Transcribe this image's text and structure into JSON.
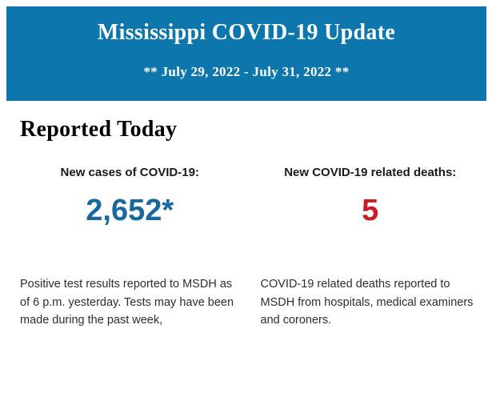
{
  "colors": {
    "banner_bg": "#0d76ad",
    "banner_text": "#ffffff",
    "cases_number": "#17689f",
    "deaths_number": "#cb1b23",
    "heading_text": "#000000",
    "label_text": "#1a1a1a",
    "body_text": "#2d2d2d",
    "page_bg": "#ffffff"
  },
  "banner": {
    "title": "Mississippi COVID-19 Update",
    "subtitle": "** July 29, 2022 - July 31, 2022 **"
  },
  "main": {
    "heading": "Reported Today",
    "cases": {
      "label": "New cases of COVID-19:",
      "value": "2,652*",
      "note": "Positive test results reported to MSDH as of 6 p.m. yesterday. Tests may have been made during the past week,"
    },
    "deaths": {
      "label": "New COVID-19 related deaths:",
      "value": "5",
      "note": "COVID-19 related deaths reported to MSDH from hospitals, medical examiners and coroners."
    }
  }
}
